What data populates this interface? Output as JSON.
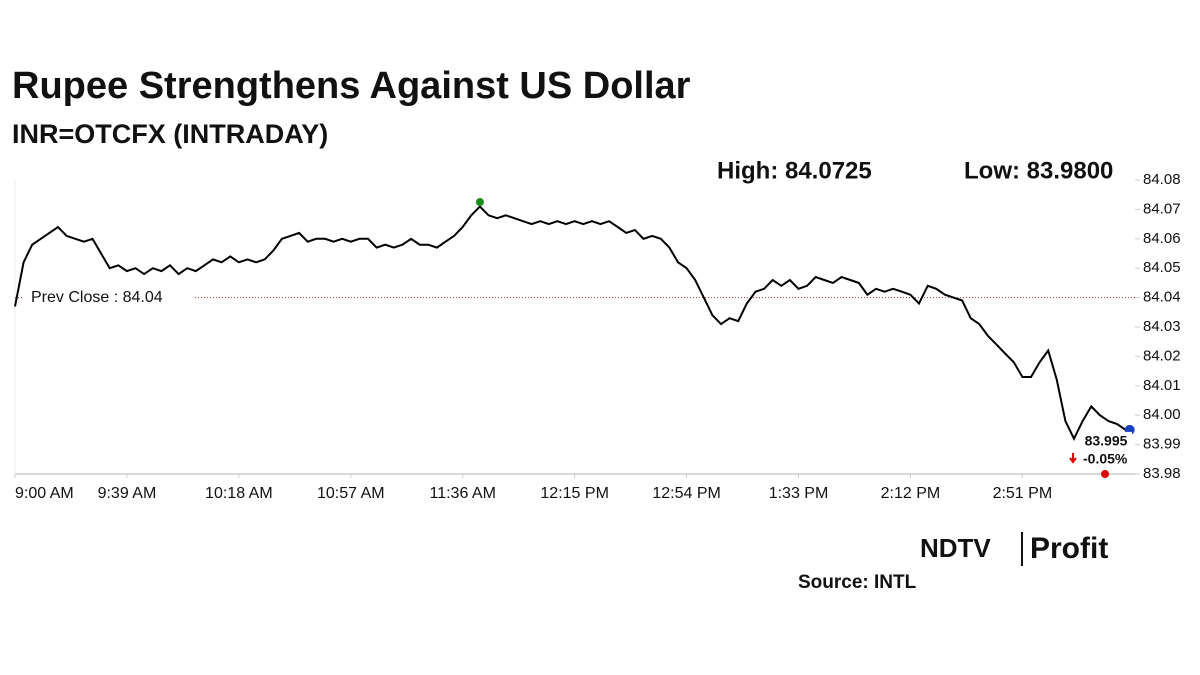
{
  "chart_data": {
    "type": "line",
    "title": "Rupee Strengthens Against US Dollar",
    "subtitle": "INR=OTCFX (INTRADAY)",
    "color": "#000000",
    "high": {
      "label": "High: 84.0725",
      "value": 84.0725
    },
    "low": {
      "label": "Low: 83.9800",
      "value": 83.98
    },
    "prev_close": {
      "label": "Prev Close : 84.04",
      "value": 84.04
    },
    "change": "-0.05%",
    "categories": [
      "9:00 AM",
      null,
      null,
      null,
      null,
      null,
      null,
      null,
      null,
      null,
      null,
      null,
      null,
      "9:39 AM",
      null,
      null,
      null,
      null,
      null,
      null,
      null,
      null,
      null,
      null,
      null,
      null,
      "10:18 AM",
      null,
      null,
      null,
      null,
      null,
      null,
      null,
      null,
      null,
      null,
      null,
      null,
      "10:57 AM",
      null,
      null,
      null,
      null,
      null,
      null,
      null,
      null,
      null,
      null,
      null,
      null,
      "11:36 AM",
      null,
      null,
      null,
      null,
      null,
      null,
      null,
      null,
      null,
      null,
      null,
      null,
      "12:15 PM",
      null,
      null,
      null,
      null,
      null,
      null,
      null,
      null,
      null,
      null,
      null,
      null,
      "12:54 PM",
      null,
      null,
      null,
      null,
      null,
      null,
      null,
      null,
      null,
      null,
      null,
      null,
      "1:33 PM",
      null,
      null,
      null,
      null,
      null,
      null,
      null,
      null,
      null,
      null,
      null,
      null,
      "2:12 PM",
      null,
      null,
      null,
      null,
      null,
      null,
      null,
      null,
      null,
      null,
      null,
      null,
      "2:51 PM",
      null,
      null,
      null,
      null,
      null,
      null,
      null,
      null,
      null,
      null,
      null,
      null
    ],
    "values": [
      84.037,
      84.052,
      84.058,
      84.06,
      84.062,
      84.064,
      84.061,
      84.06,
      84.059,
      84.06,
      84.055,
      84.05,
      84.051,
      84.049,
      84.05,
      84.048,
      84.05,
      84.049,
      84.051,
      84.048,
      84.05,
      84.049,
      84.051,
      84.053,
      84.052,
      84.054,
      84.052,
      84.053,
      84.052,
      84.053,
      84.056,
      84.06,
      84.061,
      84.062,
      84.059,
      84.06,
      84.06,
      84.059,
      84.06,
      84.059,
      84.06,
      84.06,
      84.057,
      84.058,
      84.057,
      84.058,
      84.06,
      84.058,
      84.058,
      84.057,
      84.059,
      84.061,
      84.064,
      84.068,
      84.071,
      84.068,
      84.067,
      84.068,
      84.067,
      84.066,
      84.065,
      84.066,
      84.065,
      84.066,
      84.065,
      84.066,
      84.065,
      84.066,
      84.065,
      84.066,
      84.064,
      84.062,
      84.063,
      84.06,
      84.061,
      84.06,
      84.057,
      84.052,
      84.05,
      84.046,
      84.04,
      84.034,
      84.031,
      84.033,
      84.032,
      84.038,
      84.042,
      84.043,
      84.046,
      84.044,
      84.046,
      84.043,
      84.044,
      84.047,
      84.046,
      84.045,
      84.047,
      84.046,
      84.045,
      84.041,
      84.043,
      84.042,
      84.043,
      84.042,
      84.041,
      84.038,
      84.044,
      84.043,
      84.041,
      84.04,
      84.039,
      84.033,
      84.031,
      84.027,
      84.024,
      84.021,
      84.018,
      84.013,
      84.013,
      84.018,
      84.022,
      84.012,
      83.998,
      83.992,
      83.998,
      84.003,
      84.0,
      83.998,
      83.997,
      83.995
    ],
    "ylim": [
      83.98,
      84.08
    ],
    "yticks": [
      83.98,
      83.99,
      {
        "value": 84,
        "label": "84.00"
      },
      84.01,
      84.02,
      84.03,
      84.04,
      84.05,
      84.06,
      84.07,
      84.08
    ]
  },
  "brand": {
    "name": "NDTV",
    "product": "Profit"
  },
  "source": "Source: INTL"
}
